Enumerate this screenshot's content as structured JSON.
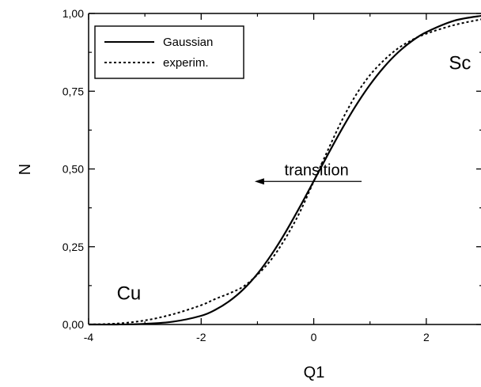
{
  "chart_data": {
    "type": "line",
    "xlabel": "Q1",
    "ylabel": "N",
    "xlim": [
      -4,
      3
    ],
    "ylim": [
      0,
      1
    ],
    "x_ticks": [
      -4,
      -2,
      0,
      2
    ],
    "x_tick_labels": [
      "-4",
      "-2",
      "0",
      "2"
    ],
    "y_ticks": [
      0,
      0.25,
      0.5,
      0.75,
      1.0
    ],
    "y_tick_labels": [
      "0,00",
      "0,25",
      "0,50",
      "0,75",
      "1,00"
    ],
    "legend": {
      "position": "top-left",
      "entries": [
        "Gaussian",
        "experim."
      ]
    },
    "series": [
      {
        "name": "Gaussian",
        "style": "solid",
        "x": [
          -4.0,
          -3.5,
          -3.0,
          -2.5,
          -2.0,
          -1.75,
          -1.5,
          -1.25,
          -1.0,
          -0.75,
          -0.5,
          -0.25,
          0.0,
          0.25,
          0.5,
          0.75,
          1.0,
          1.25,
          1.5,
          1.75,
          2.0,
          2.5,
          3.0
        ],
        "y": [
          0.0,
          0.0,
          0.002,
          0.009,
          0.028,
          0.047,
          0.075,
          0.113,
          0.163,
          0.225,
          0.297,
          0.377,
          0.461,
          0.546,
          0.628,
          0.704,
          0.771,
          0.828,
          0.875,
          0.912,
          0.94,
          0.977,
          0.993
        ]
      },
      {
        "name": "experim.",
        "style": "dotted",
        "x": [
          -4.0,
          -3.5,
          -3.0,
          -2.5,
          -2.0,
          -1.75,
          -1.5,
          -1.25,
          -1.0,
          -0.75,
          -0.5,
          -0.25,
          0.0,
          0.25,
          0.5,
          0.75,
          1.0,
          1.25,
          1.5,
          1.75,
          2.0,
          2.5,
          3.0
        ],
        "y": [
          0.0,
          0.003,
          0.013,
          0.033,
          0.062,
          0.082,
          0.1,
          0.122,
          0.16,
          0.21,
          0.278,
          0.36,
          0.46,
          0.56,
          0.656,
          0.738,
          0.802,
          0.85,
          0.888,
          0.915,
          0.935,
          0.963,
          0.982
        ]
      }
    ],
    "annotations": [
      {
        "text": "Sc",
        "x": 2.4,
        "y": 0.82
      },
      {
        "text": "Cu",
        "x": -3.5,
        "y": 0.08
      },
      {
        "text": "transition",
        "x": 0.05,
        "y": 0.48,
        "arrow_from_x": 0.85,
        "arrow_to_x": -1.05,
        "arrow_y": 0.46
      }
    ]
  }
}
